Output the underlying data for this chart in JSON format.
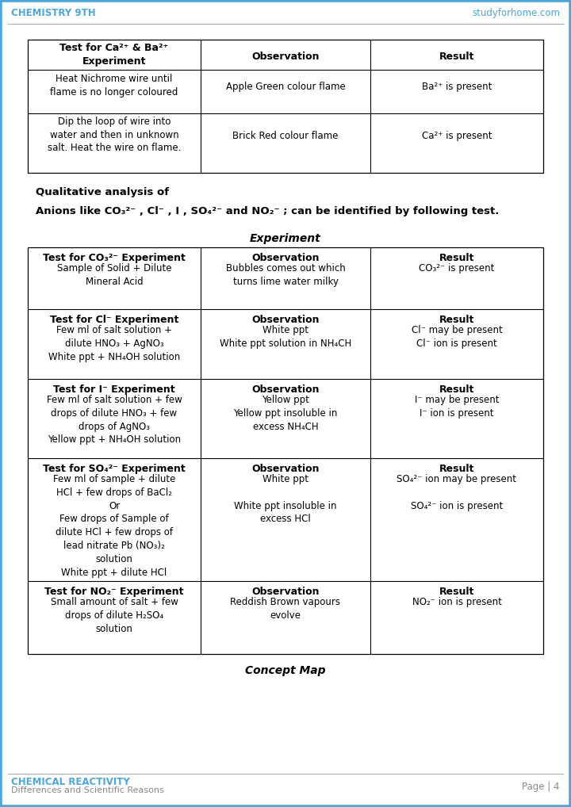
{
  "header_left": "CHEMISTRY 9TH",
  "header_right": "studyforhome.com",
  "footer_left_title": "CHEMICAL REACTIVITY",
  "footer_left_sub": "Differences and Scientific Reasons",
  "footer_right": "Page | 4",
  "bg_color": "#ffffff",
  "header_color": "#4da6d9",
  "t1_header": [
    "Test for Ca²⁺ & Ba²⁺\nExperiment",
    "Observation",
    "Result"
  ],
  "t1_rows": [
    [
      "Heat Nichrome wire until\nflame is no longer coloured",
      "Apple Green colour flame",
      "Ba²⁺ is present"
    ],
    [
      "Dip the loop of wire into\nwater and then in unknown\nsalt. Heat the wire on flame.",
      "Brick Red colour flame",
      "Ca²⁺ is present"
    ]
  ],
  "qual_line1": "Qualitative analysis of",
  "qual_line2": "Anions like CO₃²⁻ , Cl⁻ , I , SO₄²⁻ and NO₂⁻ ; can be identified by following test.",
  "exp_heading": "Experiment",
  "t2_rows": [
    {
      "exp_title": "Test for CO₃²⁻ Experiment",
      "exp_body": "Sample of Solid + Dilute\nMineral Acid",
      "obs_body": "Bubbles comes out which\nturns lime water milky",
      "res_body": "CO₃²⁻ is present"
    },
    {
      "exp_title": "Test for Cl⁻ Experiment",
      "exp_body": "Few ml of salt solution +\ndilute HNO₃ + AgNO₃\nWhite ppt + NH₄OH solution",
      "obs_body": "White ppt\nWhite ppt solution in NH₄CH",
      "res_body": "Cl⁻ may be present\nCl⁻ ion is present"
    },
    {
      "exp_title": "Test for I⁻ Experiment",
      "exp_body": "Few ml of salt solution + few\ndrops of dilute HNO₃ + few\ndrops of AgNO₃\nYellow ppt + NH₄OH solution",
      "obs_body": "Yellow ppt\nYellow ppt insoluble in\nexcess NH₄CH",
      "res_body": "I⁻ may be present\nI⁻ ion is present"
    },
    {
      "exp_title": "Test for SO₄²⁻ Experiment",
      "exp_body": "Few ml of sample + dilute\nHCl + few drops of BaCl₂\nOr\nFew drops of Sample of\ndilute HCl + few drops of\nlead nitrate Pb (NO₃)₂\nsolution\nWhite ppt + dilute HCl",
      "obs_body": "White ppt\n\nWhite ppt insoluble in\nexcess HCl",
      "res_body": "SO₄²⁻ ion may be present\n\nSO₄²⁻ ion is present"
    },
    {
      "exp_title": "Test for NO₂⁻ Experiment",
      "exp_body": "Small amount of salt + few\ndrops of dilute H₂SO₄\nsolution",
      "obs_body": "Reddish Brown vapours\nevolve",
      "res_body": "NO₂⁻ ion is present"
    }
  ],
  "concept_map": "Concept Map"
}
